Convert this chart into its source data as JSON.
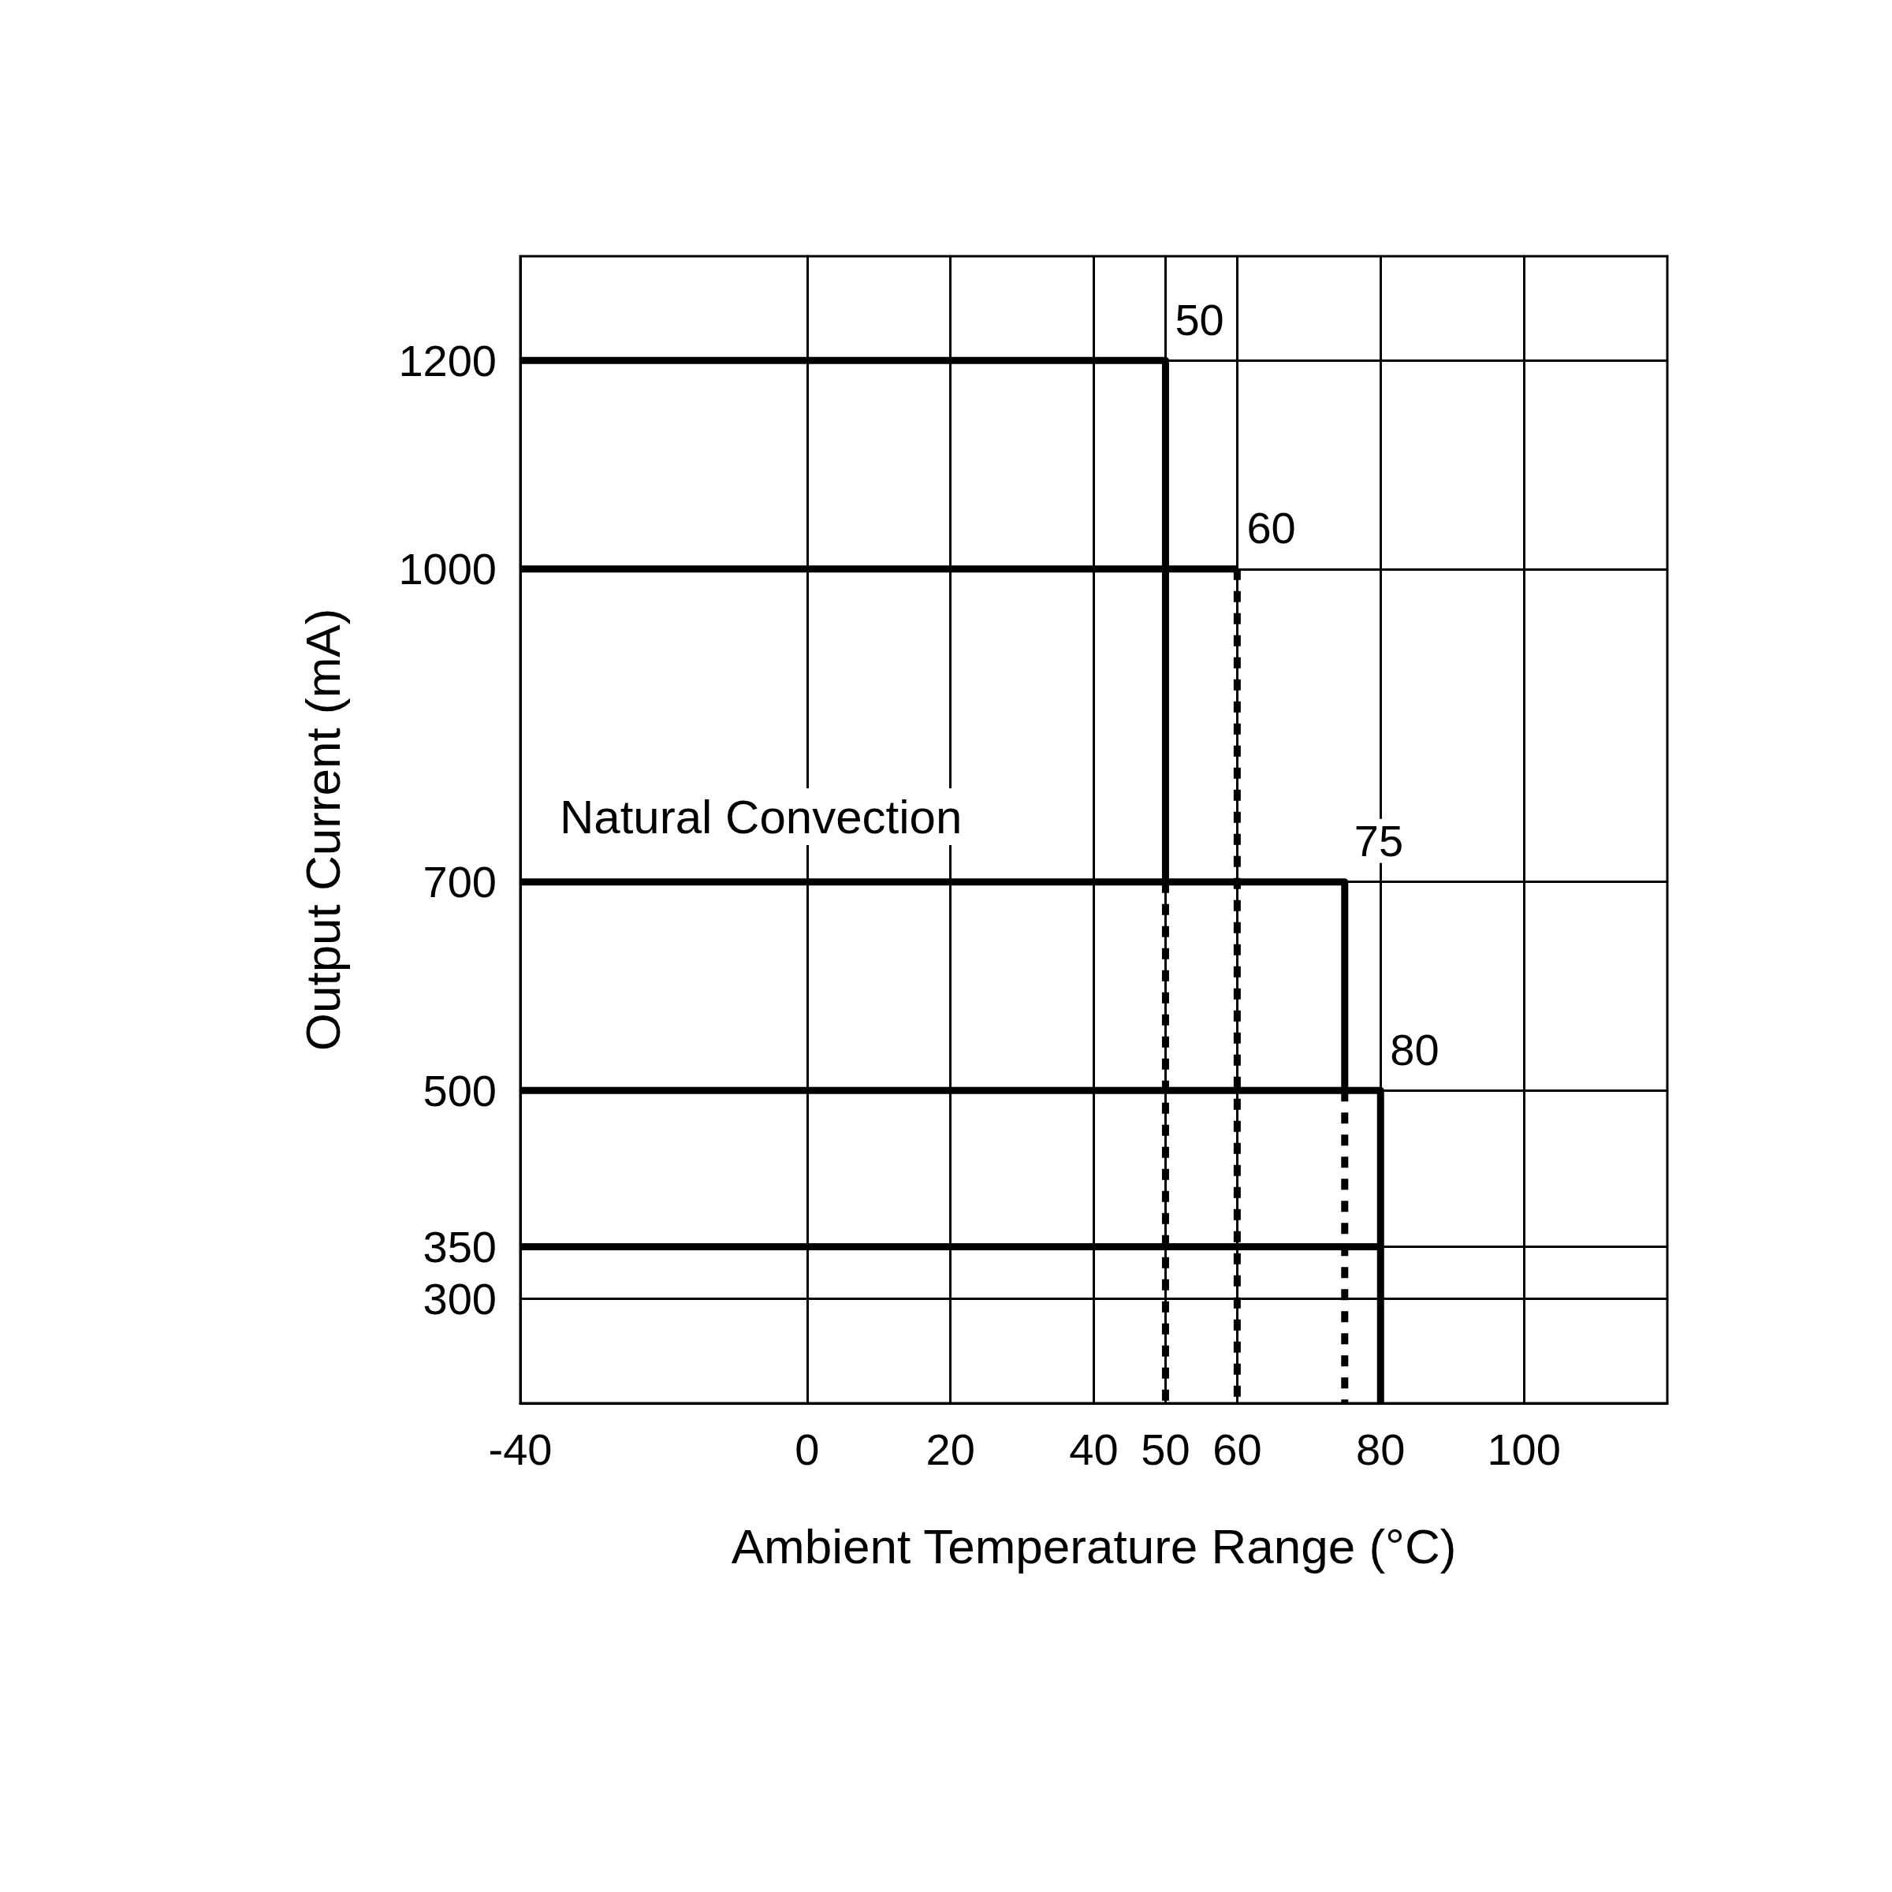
{
  "chart_data": {
    "type": "line",
    "xlabel": "Ambient Temperature Range (°C)",
    "ylabel": "Output Current (mA)",
    "xlim": [
      -40,
      120
    ],
    "xticks": [
      -40,
      0,
      20,
      40,
      50,
      60,
      80,
      100
    ],
    "ylim": [
      200,
      1300
    ],
    "yticks": [
      300,
      350,
      500,
      700,
      1000,
      1200
    ],
    "grid": true,
    "marker": "none",
    "series": [
      {
        "color": "#000000",
        "line_style": "solid",
        "x": [
          -40,
          50,
          50
        ],
        "values": [
          1200,
          1200,
          700
        ]
      },
      {
        "color": "#000000",
        "line_style": "dashed",
        "x": [
          50,
          50
        ],
        "values": [
          700,
          200
        ]
      },
      {
        "color": "#000000",
        "line_style": "solid",
        "x": [
          -40,
          60
        ],
        "values": [
          1000,
          1000
        ]
      },
      {
        "color": "#000000",
        "line_style": "dashed",
        "x": [
          60,
          60
        ],
        "values": [
          1000,
          200
        ]
      },
      {
        "color": "#000000",
        "line_style": "solid",
        "x": [
          -40,
          75,
          75
        ],
        "values": [
          700,
          700,
          500
        ]
      },
      {
        "color": "#000000",
        "line_style": "dashed",
        "x": [
          75,
          75
        ],
        "values": [
          500,
          200
        ]
      },
      {
        "color": "#000000",
        "line_style": "solid",
        "x": [
          -40,
          80,
          80
        ],
        "values": [
          500,
          500,
          200
        ]
      },
      {
        "color": "#000000",
        "line_style": "solid",
        "x": [
          -40,
          80
        ],
        "values": [
          350,
          350
        ]
      }
    ],
    "annotations": [
      {
        "text": "50",
        "x": 50,
        "y": 1200
      },
      {
        "text": "60",
        "x": 60,
        "y": 1000
      },
      {
        "text": "75",
        "x": 75,
        "y": 700
      },
      {
        "text": "80",
        "x": 80,
        "y": 500
      },
      "Natural Convection"
    ]
  }
}
